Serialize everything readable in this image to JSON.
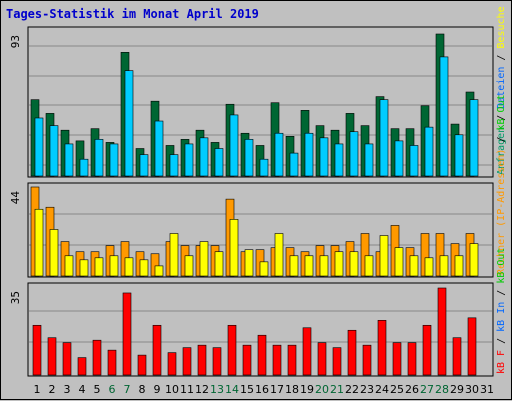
{
  "title": "Tages-Statistik im Monat April 2019",
  "chart_data": [
    {
      "type": "bar",
      "panel": "top",
      "y_max_label": "93",
      "ylim": [
        0,
        93
      ],
      "categories": [
        "1",
        "2",
        "3",
        "4",
        "5",
        "6",
        "7",
        "8",
        "9",
        "10",
        "11",
        "12",
        "13",
        "14",
        "15",
        "16",
        "17",
        "18",
        "19",
        "20",
        "21",
        "22",
        "23",
        "24",
        "25",
        "26",
        "27",
        "28",
        "29",
        "30",
        "31"
      ],
      "series": [
        {
          "name": "Anfragen",
          "color": "#006633",
          "values": [
            50,
            41,
            30,
            23,
            31,
            22,
            81,
            18,
            49,
            20,
            24,
            30,
            22,
            47,
            28,
            20,
            48,
            26,
            43,
            33,
            30,
            41,
            33,
            52,
            31,
            31,
            46,
            93,
            34,
            55,
            0
          ]
        },
        {
          "name": "Dateien",
          "color": "#00ccff",
          "values": [
            38,
            33,
            21,
            11,
            24,
            21,
            69,
            14,
            36,
            14,
            21,
            25,
            18,
            40,
            24,
            11,
            28,
            15,
            28,
            25,
            21,
            29,
            21,
            50,
            23,
            20,
            32,
            78,
            27,
            50,
            0
          ]
        }
      ],
      "legend": [
        "Anfragen",
        "/",
        "Dateien",
        "/",
        "Besuche"
      ]
    },
    {
      "type": "bar",
      "panel": "middle",
      "y_max_label": "44",
      "ylim": [
        0,
        44
      ],
      "categories": [
        "1",
        "2",
        "3",
        "4",
        "5",
        "6",
        "7",
        "8",
        "9",
        "10",
        "11",
        "12",
        "13",
        "14",
        "15",
        "16",
        "17",
        "18",
        "19",
        "20",
        "21",
        "22",
        "23",
        "24",
        "25",
        "26",
        "27",
        "28",
        "29",
        "30",
        "31"
      ],
      "series": [
        {
          "name": "Rechner (IP-Adressen)",
          "color": "#ff9900",
          "values": [
            44,
            34,
            17,
            12,
            12,
            15,
            17,
            12,
            11,
            17,
            15,
            15,
            15,
            38,
            12,
            13,
            14,
            14,
            12,
            15,
            15,
            17,
            21,
            12,
            25,
            14,
            21,
            21,
            16,
            21,
            0
          ]
        },
        {
          "name": "Besuche",
          "color": "#ffff00",
          "values": [
            33,
            23,
            10,
            8,
            9,
            10,
            9,
            8,
            5,
            21,
            10,
            17,
            12,
            28,
            13,
            7,
            21,
            10,
            10,
            10,
            12,
            12,
            10,
            20,
            14,
            10,
            9,
            10,
            10,
            16,
            0
          ]
        }
      ],
      "legend": [
        "Rechner (IP-Adressen)",
        "/",
        "kB Out"
      ]
    },
    {
      "type": "bar",
      "panel": "bottom",
      "y_max_label": "35",
      "ylim": [
        0,
        35
      ],
      "categories": [
        "1",
        "2",
        "3",
        "4",
        "5",
        "6",
        "7",
        "8",
        "9",
        "10",
        "11",
        "12",
        "13",
        "14",
        "15",
        "16",
        "17",
        "18",
        "19",
        "20",
        "21",
        "22",
        "23",
        "24",
        "25",
        "26",
        "27",
        "28",
        "29",
        "30",
        "31"
      ],
      "series": [
        {
          "name": "kB F",
          "color": "#ff0000",
          "values": [
            20,
            15,
            13,
            7,
            14,
            10,
            33,
            8,
            20,
            9,
            11,
            12,
            11,
            20,
            12,
            16,
            12,
            12,
            19,
            13,
            11,
            18,
            12,
            22,
            13,
            13,
            20,
            35,
            15,
            23,
            0
          ]
        }
      ],
      "legend": [
        "kB F",
        "/",
        "kB In",
        "/",
        "kB Out"
      ]
    }
  ],
  "x_labels": [
    {
      "t": "1",
      "c": "#000000"
    },
    {
      "t": "2",
      "c": "#000000"
    },
    {
      "t": "3",
      "c": "#000000"
    },
    {
      "t": "4",
      "c": "#000000"
    },
    {
      "t": "5",
      "c": "#000000"
    },
    {
      "t": "6",
      "c": "#006633"
    },
    {
      "t": "7",
      "c": "#006633"
    },
    {
      "t": "8",
      "c": "#000000"
    },
    {
      "t": "9",
      "c": "#000000"
    },
    {
      "t": "10",
      "c": "#000000"
    },
    {
      "t": "11",
      "c": "#000000"
    },
    {
      "t": "12",
      "c": "#000000"
    },
    {
      "t": "13",
      "c": "#006633"
    },
    {
      "t": "14",
      "c": "#006633"
    },
    {
      "t": "15",
      "c": "#000000"
    },
    {
      "t": "16",
      "c": "#000000"
    },
    {
      "t": "17",
      "c": "#000000"
    },
    {
      "t": "18",
      "c": "#000000"
    },
    {
      "t": "19",
      "c": "#000000"
    },
    {
      "t": "20",
      "c": "#006633"
    },
    {
      "t": "21",
      "c": "#006633"
    },
    {
      "t": "22",
      "c": "#000000"
    },
    {
      "t": "23",
      "c": "#000000"
    },
    {
      "t": "24",
      "c": "#000000"
    },
    {
      "t": "25",
      "c": "#000000"
    },
    {
      "t": "26",
      "c": "#000000"
    },
    {
      "t": "27",
      "c": "#006633"
    },
    {
      "t": "28",
      "c": "#006633"
    },
    {
      "t": "29",
      "c": "#000000"
    },
    {
      "t": "30",
      "c": "#000000"
    },
    {
      "t": "31",
      "c": "#000000"
    }
  ],
  "right_legend": {
    "top": [
      {
        "t": "Anfragen",
        "c": "#009966"
      },
      {
        "t": " / ",
        "c": "#000000"
      },
      {
        "t": "Dateien",
        "c": "#0066ff"
      },
      {
        "t": " / ",
        "c": "#000000"
      },
      {
        "t": "Besuche",
        "c": "#ffff00"
      }
    ],
    "middle": [
      {
        "t": "Rechner (IP-Adressen)",
        "c": "#ff9900"
      },
      {
        "t": " / ",
        "c": "#000000"
      },
      {
        "t": "kB Out",
        "c": "#00cc00"
      }
    ],
    "bottom": [
      {
        "t": "kB F",
        "c": "#ff0000"
      },
      {
        "t": " / ",
        "c": "#000000"
      },
      {
        "t": "kB In",
        "c": "#0066ff"
      },
      {
        "t": " / ",
        "c": "#000000"
      },
      {
        "t": "kB Out",
        "c": "#00cc00"
      }
    ]
  },
  "colors": {
    "panel_bg": "#c0c0c0",
    "grid": "#888888",
    "axis": "#000000",
    "title": "#0000cc"
  }
}
